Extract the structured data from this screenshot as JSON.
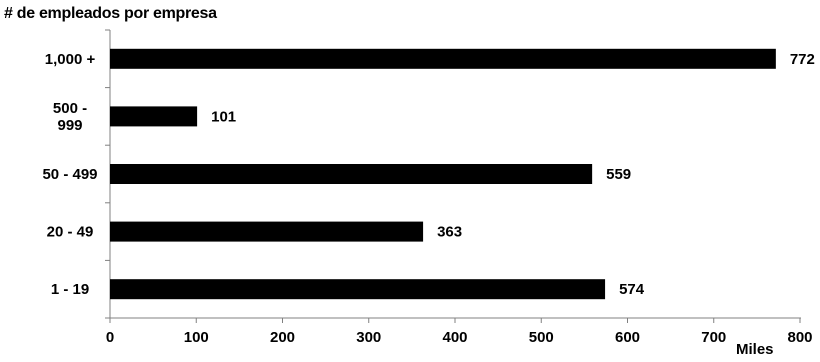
{
  "chart_data": {
    "type": "bar",
    "orientation": "horizontal",
    "title": "# de empleados por empresa",
    "unit_label": "Miles",
    "categories": [
      "1,000 +",
      "500 - 999",
      "50 - 499",
      "20 - 49",
      "1 - 19"
    ],
    "category_lines": [
      [
        "1,000 +"
      ],
      [
        "500 -",
        "999"
      ],
      [
        "50 - 499"
      ],
      [
        "20 - 49"
      ],
      [
        "1 - 19"
      ]
    ],
    "values": [
      772,
      101,
      559,
      363,
      574
    ],
    "value_labels": [
      "772",
      "101",
      "559",
      "363",
      "574"
    ],
    "xlim": [
      0,
      800
    ],
    "xticks": [
      "0",
      "100",
      "200",
      "300",
      "400",
      "500",
      "600",
      "700",
      "800"
    ],
    "grid": false,
    "legend": "none",
    "bar_color": "#000000"
  }
}
